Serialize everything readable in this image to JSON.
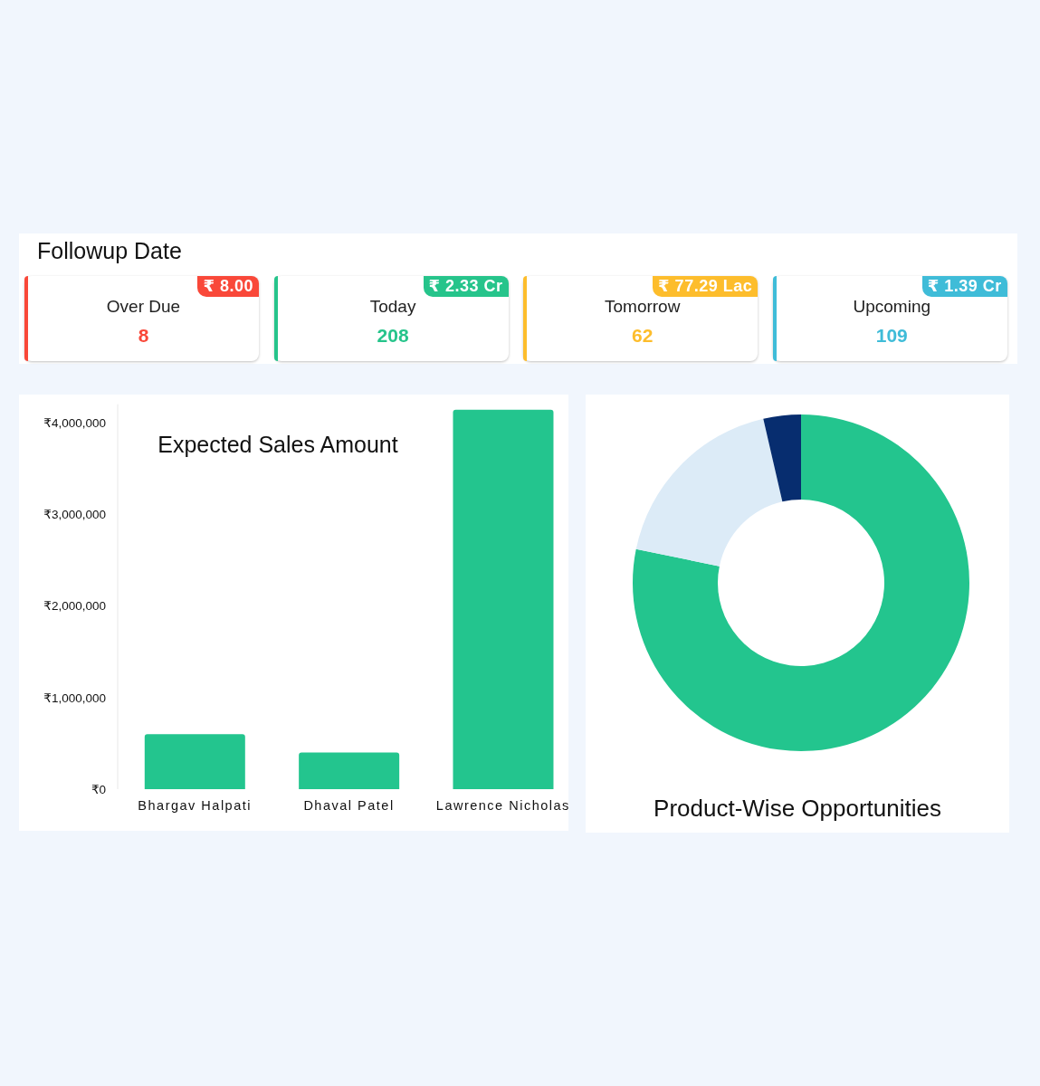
{
  "chart_data": [
    {
      "type": "other",
      "title": "Followup Date",
      "categories": [
        "Over Due",
        "Today",
        "Tomorrow",
        "Upcoming"
      ],
      "values": [
        8,
        208,
        62,
        109
      ],
      "data_labels": true,
      "annotations": [
        "₹ 8.00",
        "₹ 2.33 Cr",
        "₹ 77.29 Lac",
        "₹ 1.39 Cr"
      ]
    },
    {
      "type": "bar",
      "title": "Expected Sales Amount",
      "categories": [
        "Bhargav Halpati",
        "Dhaval Patel",
        "Lawrence Nicholas"
      ],
      "values": [
        600000,
        400000,
        4140000
      ],
      "color": "#23c58e",
      "ylim": [
        0,
        4200000
      ],
      "yticks": [
        {
          "value": 0,
          "label": "₹0"
        },
        {
          "value": 1000000,
          "label": "₹1,000,000"
        },
        {
          "value": 2000000,
          "label": "₹2,000,000"
        },
        {
          "value": 3000000,
          "label": "₹3,000,000"
        },
        {
          "value": 4000000,
          "label": "₹4,000,000"
        }
      ],
      "grid": false
    },
    {
      "type": "donut",
      "title": "Product-Wise Opportunities",
      "categories": [
        null,
        null,
        null
      ],
      "values": [
        78.2,
        18.2,
        3.6
      ],
      "colors": [
        "#23c58e",
        "#dcebf7",
        "#072d6f"
      ]
    }
  ]
}
